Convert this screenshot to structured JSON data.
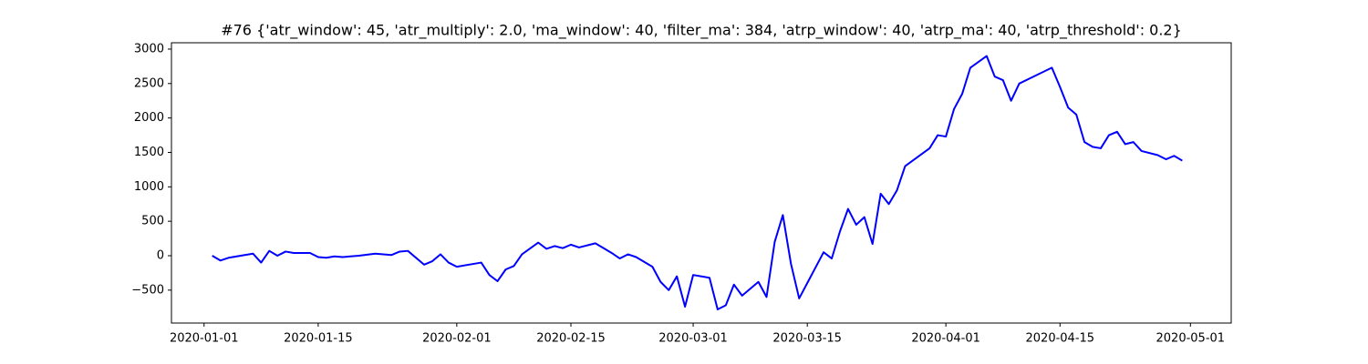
{
  "chart_data": {
    "type": "line",
    "title": "#76 {'atr_window': 45, 'atr_multiply': 2.0, 'ma_window': 40, 'filter_ma': 384, 'atrp_window': 40, 'atrp_ma': 40, 'atrp_threshold': 0.2}",
    "color": "#0000ff",
    "x": [
      "2020-01-02",
      "2020-01-03",
      "2020-01-04",
      "2020-01-06",
      "2020-01-07",
      "2020-01-08",
      "2020-01-09",
      "2020-01-10",
      "2020-01-11",
      "2020-01-12",
      "2020-01-14",
      "2020-01-15",
      "2020-01-16",
      "2020-01-17",
      "2020-01-18",
      "2020-01-20",
      "2020-01-22",
      "2020-01-23",
      "2020-01-24",
      "2020-01-25",
      "2020-01-26",
      "2020-01-28",
      "2020-01-29",
      "2020-01-30",
      "2020-01-31",
      "2020-02-01",
      "2020-02-04",
      "2020-02-05",
      "2020-02-06",
      "2020-02-07",
      "2020-02-08",
      "2020-02-09",
      "2020-02-11",
      "2020-02-12",
      "2020-02-13",
      "2020-02-14",
      "2020-02-15",
      "2020-02-16",
      "2020-02-18",
      "2020-02-19",
      "2020-02-20",
      "2020-02-21",
      "2020-02-22",
      "2020-02-23",
      "2020-02-25",
      "2020-02-26",
      "2020-02-27",
      "2020-02-28",
      "2020-02-29",
      "2020-03-01",
      "2020-03-03",
      "2020-03-04",
      "2020-03-05",
      "2020-03-06",
      "2020-03-07",
      "2020-03-09",
      "2020-03-10",
      "2020-03-11",
      "2020-03-12",
      "2020-03-13",
      "2020-03-14",
      "2020-03-17",
      "2020-03-18",
      "2020-03-19",
      "2020-03-20",
      "2020-03-21",
      "2020-03-22",
      "2020-03-23",
      "2020-03-24",
      "2020-03-25",
      "2020-03-26",
      "2020-03-27",
      "2020-03-30",
      "2020-03-31",
      "2020-04-01",
      "2020-04-02",
      "2020-04-03",
      "2020-04-04",
      "2020-04-06",
      "2020-04-07",
      "2020-04-08",
      "2020-04-09",
      "2020-04-10",
      "2020-04-14",
      "2020-04-15",
      "2020-04-16",
      "2020-04-17",
      "2020-04-18",
      "2020-04-19",
      "2020-04-20",
      "2020-04-21",
      "2020-04-22",
      "2020-04-23",
      "2020-04-24",
      "2020-04-25",
      "2020-04-27",
      "2020-04-28",
      "2020-04-29",
      "2020-04-30"
    ],
    "values": [
      0,
      -70,
      -30,
      10,
      30,
      -100,
      70,
      0,
      60,
      40,
      40,
      -20,
      -30,
      -10,
      -20,
      0,
      30,
      20,
      10,
      60,
      70,
      -130,
      -80,
      20,
      -100,
      -160,
      -100,
      -280,
      -370,
      -200,
      -150,
      20,
      190,
      100,
      140,
      110,
      160,
      120,
      180,
      110,
      40,
      -40,
      20,
      -20,
      -160,
      -380,
      -500,
      -300,
      -740,
      -280,
      -320,
      -780,
      -720,
      -420,
      -580,
      -380,
      -600,
      200,
      590,
      -120,
      -620,
      50,
      -40,
      350,
      680,
      450,
      560,
      170,
      900,
      750,
      950,
      1300,
      1560,
      1750,
      1730,
      2130,
      2350,
      2730,
      2900,
      2600,
      2550,
      2250,
      2500,
      2730,
      2450,
      2150,
      2050,
      1650,
      1580,
      1560,
      1750,
      1800,
      1620,
      1650,
      1520,
      1460,
      1400,
      1450,
      1380
    ],
    "xlim": [
      "2019-12-28",
      "2020-05-06"
    ],
    "xticks": [
      "2020-01-01",
      "2020-01-15",
      "2020-02-01",
      "2020-02-15",
      "2020-03-01",
      "2020-03-15",
      "2020-04-01",
      "2020-04-15",
      "2020-05-01"
    ],
    "ylim": [
      -978,
      3092
    ],
    "yticks": [
      {
        "value": -500,
        "label": "−500"
      },
      0,
      500,
      1000,
      1500,
      2000,
      2500,
      3000
    ]
  }
}
